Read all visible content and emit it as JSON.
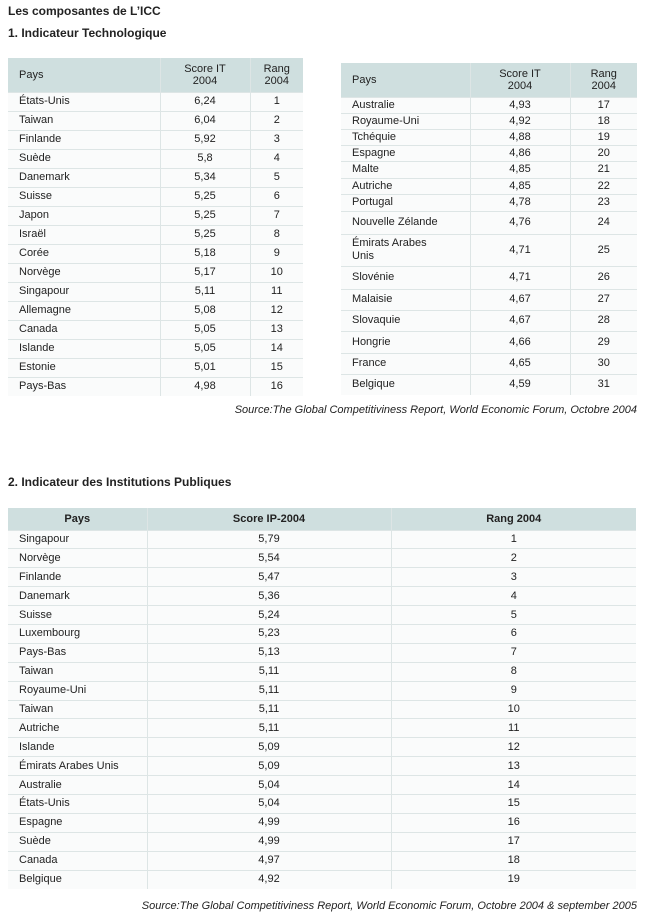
{
  "title": "Les composantes de L’ICC",
  "section1": {
    "heading": "1. Indicateur Technologique",
    "table_left": {
      "headers": [
        "Pays",
        "Score IT\n2004",
        "Rang\n2004"
      ],
      "rows": [
        [
          "États-Unis",
          "6,24",
          "1"
        ],
        [
          "Taiwan",
          "6,04",
          "2"
        ],
        [
          "Finlande",
          "5,92",
          "3"
        ],
        [
          "Suède",
          "5,8",
          "4"
        ],
        [
          "Danemark",
          "5,34",
          "5"
        ],
        [
          "Suisse",
          "5,25",
          "6"
        ],
        [
          "Japon",
          "5,25",
          "7"
        ],
        [
          "Israël",
          "5,25",
          "8"
        ],
        [
          "Corée",
          "5,18",
          "9"
        ],
        [
          "Norvège",
          "5,17",
          "10"
        ],
        [
          "Singapour",
          "5,11",
          "11"
        ],
        [
          "Allemagne",
          "5,08",
          "12"
        ],
        [
          "Canada",
          "5,05",
          "13"
        ],
        [
          "Islande",
          "5,05",
          "14"
        ],
        [
          "Estonie",
          "5,01",
          "15"
        ],
        [
          "Pays-Bas",
          "4,98",
          "16"
        ]
      ]
    },
    "table_right": {
      "headers": [
        "Pays",
        "Score IT\n2004",
        "Rang\n2004"
      ],
      "rows": [
        [
          "Australie",
          "4,93",
          "17"
        ],
        [
          "Royaume-Uni",
          "4,92",
          "18"
        ],
        [
          "Tchéquie",
          "4,88",
          "19"
        ],
        [
          "Espagne",
          "4,86",
          "20"
        ],
        [
          "Malte",
          "4,85",
          "21"
        ],
        [
          "Autriche",
          "4,85",
          "22"
        ],
        [
          "Portugal",
          "4,78",
          "23"
        ],
        [
          "Nouvelle Zélande",
          "4,76",
          "24"
        ],
        [
          "Émirats Arabes\nUnis",
          "4,71",
          "25"
        ],
        [
          "Slovénie",
          "4,71",
          "26"
        ],
        [
          "Malaisie",
          "4,67",
          "27"
        ],
        [
          "Slovaquie",
          "4,67",
          "28"
        ],
        [
          "Hongrie",
          "4,66",
          "29"
        ],
        [
          "France",
          "4,65",
          "30"
        ],
        [
          "Belgique",
          "4,59",
          "31"
        ]
      ]
    },
    "source": "Source:The Global Competitiviness Report, World Economic Forum, Octobre 2004"
  },
  "section2": {
    "heading": "2. Indicateur des Institutions Publiques",
    "table": {
      "headers": [
        "Pays",
        "Score IP-2004",
        "Rang 2004"
      ],
      "rows": [
        [
          "Singapour",
          "5,79",
          "1"
        ],
        [
          "Norvège",
          "5,54",
          "2"
        ],
        [
          "Finlande",
          "5,47",
          "3"
        ],
        [
          "Danemark",
          "5,36",
          "4"
        ],
        [
          "Suisse",
          "5,24",
          "5"
        ],
        [
          "Luxembourg",
          "5,23",
          "6"
        ],
        [
          "Pays-Bas",
          "5,13",
          "7"
        ],
        [
          "Taiwan",
          "5,11",
          "8"
        ],
        [
          "Royaume-Uni",
          "5,11",
          "9"
        ],
        [
          "Taiwan",
          "5,11",
          "10"
        ],
        [
          "Autriche",
          "5,11",
          "11"
        ],
        [
          "Islande",
          "5,09",
          "12"
        ],
        [
          "Émirats Arabes Unis",
          "5,09",
          "13"
        ],
        [
          "Australie",
          "5,04",
          "14"
        ],
        [
          "États-Unis",
          "5,04",
          "15"
        ],
        [
          "Espagne",
          "4,99",
          "16"
        ],
        [
          "Suède",
          "4,99",
          "17"
        ],
        [
          "Canada",
          "4,97",
          "18"
        ],
        [
          "Belgique",
          "4,92",
          "19"
        ]
      ]
    },
    "source": "Source:The Global Competitiviness Report, World Economic Forum, Octobre 2004 & september 2005"
  }
}
